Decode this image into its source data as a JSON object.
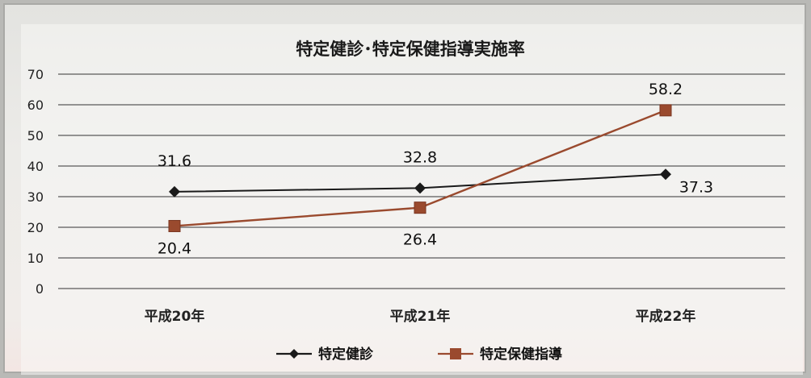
{
  "chart_data": {
    "type": "line",
    "title": "特定健診･特定保健指導実施率",
    "categories": [
      "平成20年",
      "平成21年",
      "平成22年"
    ],
    "ylim": [
      0,
      70
    ],
    "yticks": [
      "0",
      "10",
      "20",
      "30",
      "40",
      "50",
      "60",
      "70"
    ],
    "grid": true,
    "legend_position": "bottom",
    "series": [
      {
        "name": "特定健診",
        "values": [
          31.6,
          32.8,
          37.3
        ],
        "labels": [
          "31.6",
          "32.8",
          "37.3"
        ],
        "color": "#1a1a1a",
        "marker": "diamond"
      },
      {
        "name": "特定保健指導",
        "values": [
          20.4,
          26.4,
          58.2
        ],
        "labels": [
          "20.4",
          "26.4",
          "58.2"
        ],
        "color": "#9a4a2e",
        "marker": "square"
      }
    ]
  }
}
